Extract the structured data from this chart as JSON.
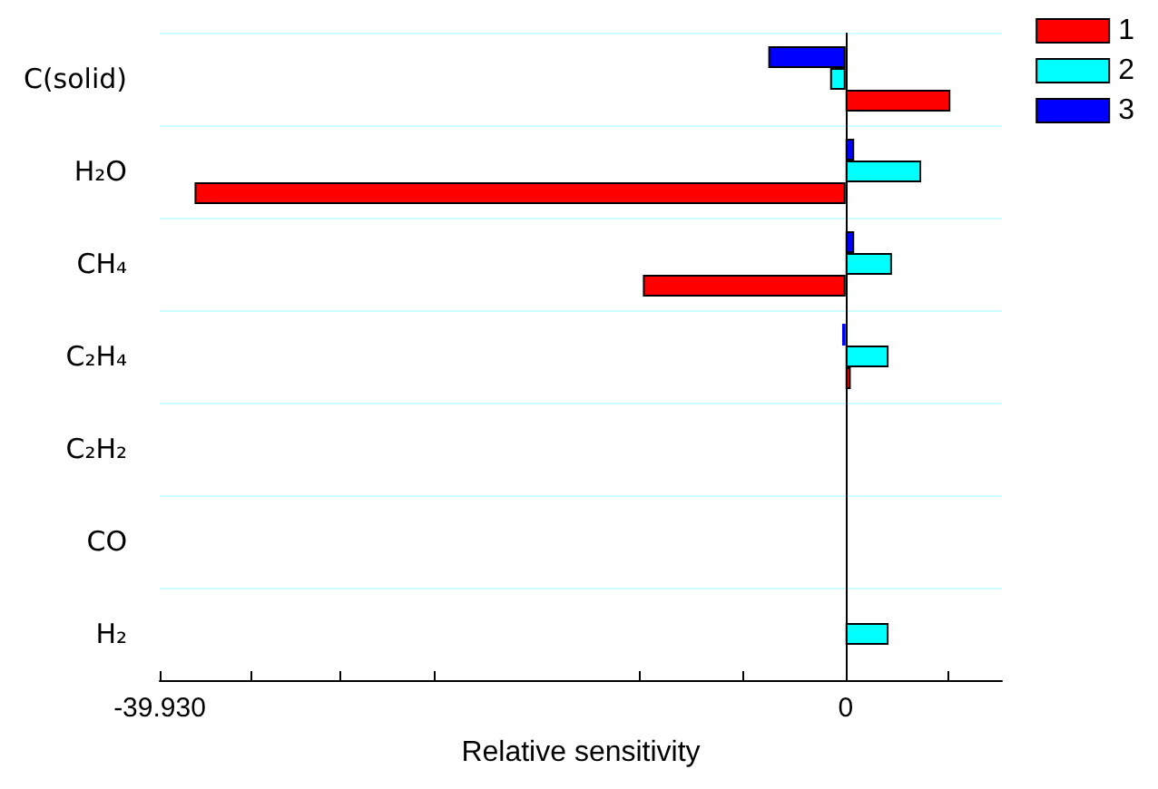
{
  "chart_data": {
    "type": "bar",
    "orientation": "horizontal",
    "xlabel": "Relative sensitivity",
    "categories": [
      "C(solid)",
      "H₂O",
      "CH₄",
      "C₂H₄",
      "C₂H₂",
      "CO",
      "H₂"
    ],
    "series": [
      {
        "name": "1",
        "color": "#ff0000",
        "values": [
          6.1,
          -37.9,
          -11.8,
          0.3,
          0,
          0,
          0
        ]
      },
      {
        "name": "2",
        "color": "#00ffff",
        "values": [
          -0.9,
          4.4,
          2.7,
          2.5,
          0,
          0,
          2.5
        ]
      },
      {
        "name": "3",
        "color": "#0000ff",
        "values": [
          -4.5,
          0.5,
          0.5,
          -0.2,
          0,
          0,
          0
        ]
      }
    ],
    "xlim": [
      -39.93,
      9.1
    ],
    "xticks": [
      {
        "value": -39.93,
        "label": "-39.930"
      },
      {
        "value": -34.6,
        "label": null
      },
      {
        "value": -29.4,
        "label": null
      },
      {
        "value": -24,
        "label": null
      },
      {
        "value": -12,
        "label": null
      },
      {
        "value": -6,
        "label": null
      },
      0,
      {
        "value": 6,
        "label": null
      }
    ],
    "ref_lines": [
      {
        "axis": "x",
        "value": 0,
        "color": "#000000"
      }
    ],
    "grid": "y",
    "legend": "top right"
  }
}
